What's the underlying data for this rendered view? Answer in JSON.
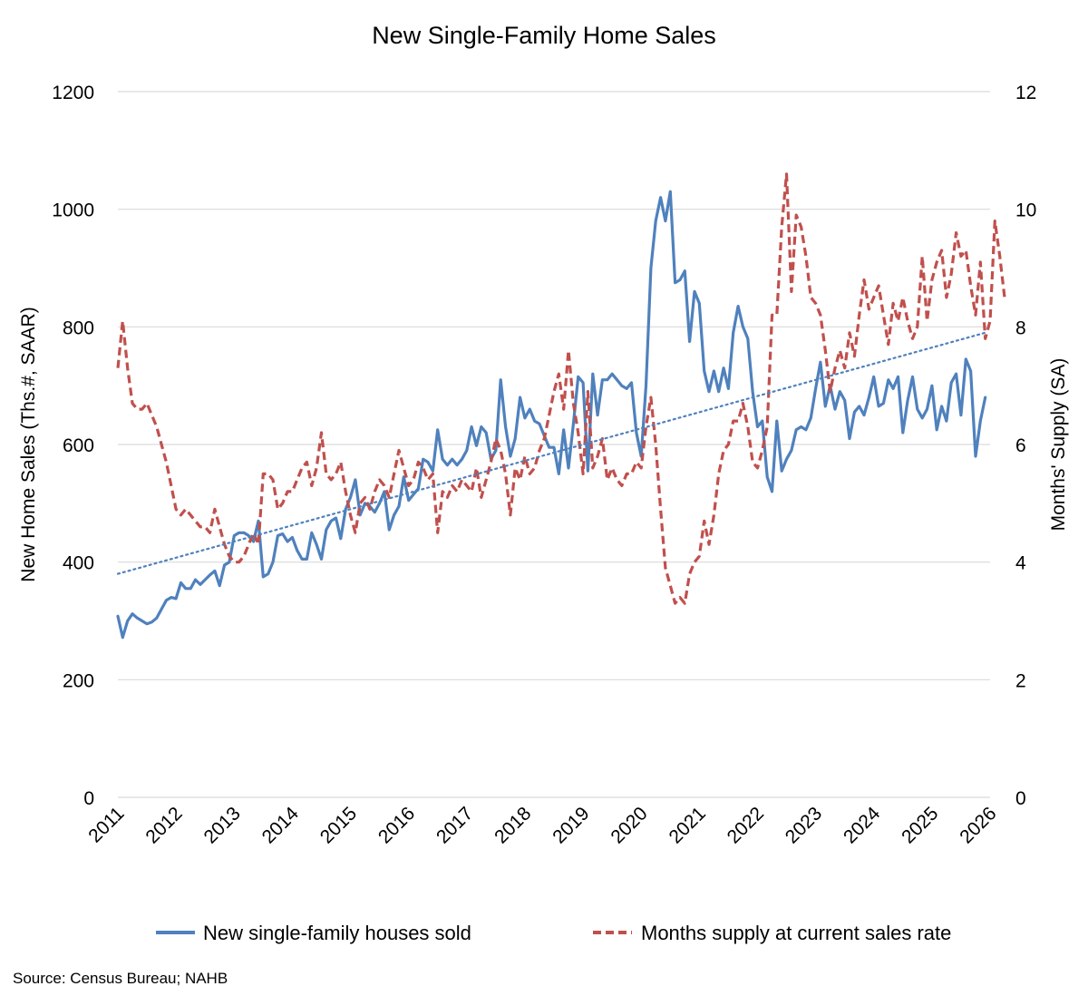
{
  "chart_data": {
    "type": "line",
    "title": "New Single-Family Home Sales",
    "ylabel": "New Home Sales (Ths.#, SAAR)",
    "y2label": "Months' Supply (SA)",
    "ylim": [
      0,
      1200
    ],
    "y2lim": [
      0,
      12
    ],
    "y_ticks": [
      "0",
      "200",
      "400",
      "600",
      "800",
      "1000",
      "1200"
    ],
    "y2_ticks": [
      "0",
      "2",
      "4",
      "6",
      "8",
      "10",
      "12"
    ],
    "x_ticks": [
      "2011",
      "2012",
      "2013",
      "2014",
      "2015",
      "2016",
      "2017",
      "2018",
      "2019",
      "2020",
      "2021",
      "2022",
      "2023",
      "2024",
      "2025",
      "2026"
    ],
    "grid": true,
    "legend_position": "bottom",
    "source": "Source: Census Bureau; NAHB",
    "colors": {
      "sales": "#4f81bd",
      "supply": "#c0504d",
      "trend": "#4f81bd",
      "grid": "#d9d9d9"
    },
    "series": [
      {
        "name": "New single-family houses sold",
        "axis": "left",
        "style": "solid",
        "start": "2011-01",
        "values": [
          308,
          272,
          300,
          312,
          305,
          300,
          295,
          298,
          305,
          320,
          335,
          340,
          338,
          365,
          355,
          355,
          370,
          362,
          370,
          378,
          385,
          360,
          395,
          400,
          445,
          450,
          450,
          445,
          435,
          470,
          375,
          380,
          400,
          445,
          448,
          435,
          442,
          420,
          405,
          405,
          450,
          430,
          405,
          455,
          470,
          475,
          440,
          490,
          510,
          540,
          480,
          500,
          495,
          485,
          500,
          520,
          455,
          480,
          495,
          545,
          505,
          515,
          525,
          575,
          570,
          555,
          625,
          575,
          565,
          575,
          565,
          575,
          590,
          630,
          598,
          630,
          620,
          575,
          590,
          710,
          630,
          580,
          610,
          680,
          645,
          660,
          640,
          635,
          615,
          595,
          595,
          550,
          625,
          560,
          635,
          715,
          705,
          555,
          720,
          650,
          710,
          710,
          720,
          710,
          700,
          695,
          705,
          620,
          580,
          700,
          900,
          980,
          1020,
          980,
          1030,
          875,
          880,
          895,
          775,
          860,
          840,
          725,
          690,
          725,
          690,
          730,
          695,
          790,
          835,
          800,
          780,
          690,
          630,
          640,
          545,
          520,
          640,
          555,
          575,
          590,
          625,
          630,
          625,
          645,
          695,
          740,
          665,
          700,
          660,
          690,
          675,
          610,
          655,
          665,
          650,
          680,
          715,
          665,
          670,
          710,
          695,
          715,
          620,
          675,
          715,
          660,
          645,
          660,
          700,
          625,
          665,
          640,
          705,
          720,
          650,
          745,
          725,
          580,
          640,
          680
        ]
      },
      {
        "name": "Months supply at current sales rate",
        "axis": "right",
        "style": "dashed",
        "start": "2011-01",
        "values": [
          7.3,
          8.1,
          7.3,
          6.7,
          6.6,
          6.6,
          6.7,
          6.5,
          6.3,
          6.0,
          5.7,
          5.3,
          4.9,
          4.8,
          4.9,
          4.8,
          4.7,
          4.6,
          4.6,
          4.5,
          4.9,
          4.6,
          4.3,
          4.1,
          4.0,
          4.0,
          4.1,
          4.3,
          4.5,
          4.3,
          5.5,
          5.5,
          5.4,
          4.9,
          5.0,
          5.2,
          5.2,
          5.4,
          5.6,
          5.7,
          5.3,
          5.6,
          6.2,
          5.5,
          5.4,
          5.5,
          5.7,
          5.2,
          4.8,
          4.5,
          5.0,
          5.1,
          4.9,
          5.2,
          5.4,
          5.3,
          5.1,
          5.5,
          5.9,
          5.6,
          5.3,
          5.4,
          5.7,
          5.6,
          5.4,
          5.5,
          4.5,
          5.2,
          5.1,
          5.3,
          5.2,
          5.4,
          5.3,
          5.2,
          5.6,
          5.1,
          5.4,
          5.7,
          6.1,
          5.9,
          5.5,
          4.8,
          5.6,
          5.4,
          5.8,
          5.5,
          5.6,
          5.9,
          6.1,
          6.5,
          6.9,
          7.2,
          6.6,
          7.6,
          6.7,
          6.2,
          5.5,
          6.9,
          5.6,
          5.8,
          6.1,
          5.4,
          5.6,
          5.4,
          5.3,
          5.5,
          5.5,
          5.7,
          5.6,
          6.3,
          6.8,
          6.0,
          4.9,
          3.9,
          3.6,
          3.3,
          3.4,
          3.3,
          3.8,
          4.0,
          4.1,
          4.7,
          4.3,
          4.8,
          5.5,
          5.9,
          6.0,
          6.4,
          6.4,
          6.7,
          6.3,
          5.7,
          5.6,
          5.9,
          6.3,
          8.2,
          8.2,
          9.7,
          10.6,
          8.6,
          9.9,
          9.7,
          9.2,
          8.5,
          8.4,
          8.2,
          7.6,
          6.9,
          7.3,
          7.6,
          7.3,
          7.9,
          7.5,
          8.2,
          8.8,
          8.3,
          8.5,
          8.7,
          8.2,
          7.7,
          8.4,
          8.1,
          8.5,
          8.1,
          7.8,
          8.0,
          9.2,
          8.1,
          8.8,
          9.1,
          9.3,
          8.5,
          8.9,
          9.6,
          9.2,
          9.3,
          8.7,
          8.2,
          9.1,
          7.8,
          8.1,
          9.8,
          9.2,
          8.5
        ]
      },
      {
        "name": "",
        "axis": "left",
        "style": "dotted",
        "kind": "linear-trend",
        "endpoints": [
          380,
          790
        ]
      }
    ]
  }
}
